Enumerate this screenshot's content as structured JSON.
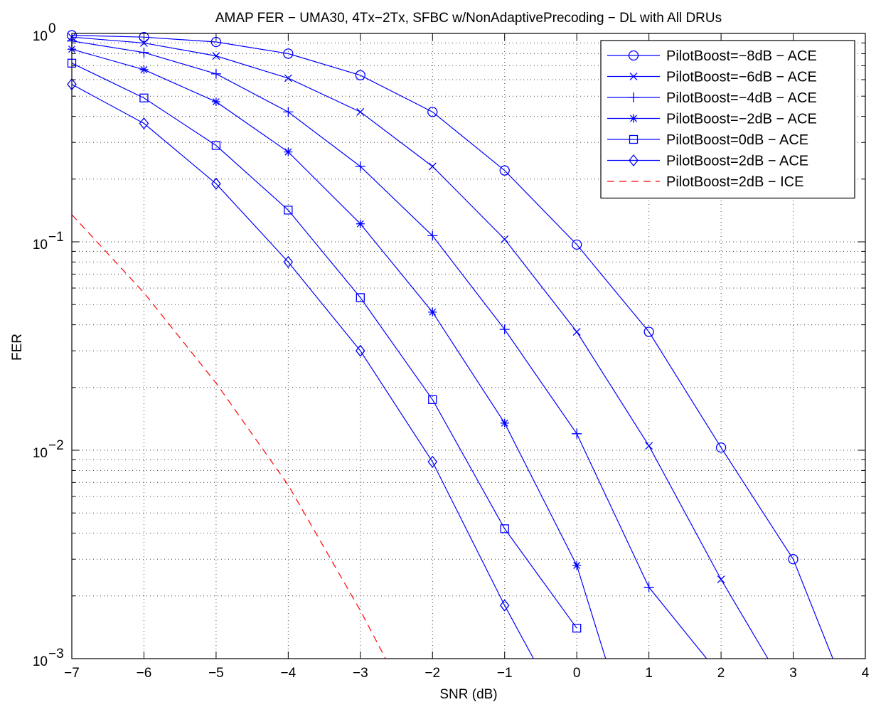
{
  "chart_data": {
    "type": "line",
    "title": "AMAP FER − UMA30, 4Tx−2Tx, SFBC w/NonAdaptivePrecoding − DL with All DRUs",
    "xlabel": "SNR (dB)",
    "ylabel": "FER",
    "xlim": [
      -7,
      4
    ],
    "ylim": [
      0.001,
      1
    ],
    "yscale": "log",
    "grid": true,
    "legend_position": "top-right",
    "x_ticks": [
      "−7",
      "−6",
      "−5",
      "−4",
      "−3",
      "−2",
      "−1",
      "0",
      "1",
      "2",
      "3",
      "4"
    ],
    "y_ticks": [
      {
        "base": "10",
        "exp": "0"
      },
      {
        "base": "10",
        "exp": "−1"
      },
      {
        "base": "10",
        "exp": "−2"
      },
      {
        "base": "10",
        "exp": "−3"
      }
    ],
    "series": [
      {
        "name": "PilotBoost=−8dB − ACE",
        "color": "#0000ff",
        "marker": "circle",
        "dash": "solid",
        "points": [
          [
            -7,
            0.98
          ],
          [
            -6,
            0.96
          ],
          [
            -5,
            0.91
          ],
          [
            -4,
            0.8
          ],
          [
            -3,
            0.63
          ],
          [
            -2,
            0.42
          ],
          [
            -1,
            0.22
          ],
          [
            0,
            0.097
          ],
          [
            1,
            0.037
          ],
          [
            2,
            0.0103
          ],
          [
            3,
            0.003
          ],
          [
            3.55,
            0.001
          ]
        ]
      },
      {
        "name": "PilotBoost=−6dB − ACE",
        "color": "#0000ff",
        "marker": "x",
        "dash": "solid",
        "points": [
          [
            -7,
            0.96
          ],
          [
            -6,
            0.9
          ],
          [
            -5,
            0.78
          ],
          [
            -4,
            0.61
          ],
          [
            -3,
            0.42
          ],
          [
            -2,
            0.23
          ],
          [
            -1,
            0.103
          ],
          [
            0,
            0.037
          ],
          [
            1,
            0.0105
          ],
          [
            2,
            0.0024
          ],
          [
            2.65,
            0.001
          ]
        ]
      },
      {
        "name": "PilotBoost=−4dB − ACE",
        "color": "#0000ff",
        "marker": "plus",
        "dash": "solid",
        "points": [
          [
            -7,
            0.92
          ],
          [
            -6,
            0.81
          ],
          [
            -5,
            0.64
          ],
          [
            -4,
            0.42
          ],
          [
            -3,
            0.23
          ],
          [
            -2,
            0.107
          ],
          [
            -1,
            0.038
          ],
          [
            0,
            0.012
          ],
          [
            1,
            0.0022
          ],
          [
            1.8,
            0.001
          ]
        ]
      },
      {
        "name": "PilotBoost=−2dB − ACE",
        "color": "#0000ff",
        "marker": "star",
        "dash": "solid",
        "points": [
          [
            -7,
            0.84
          ],
          [
            -6,
            0.67
          ],
          [
            -5,
            0.47
          ],
          [
            -4,
            0.27
          ],
          [
            -3,
            0.122
          ],
          [
            -2,
            0.046
          ],
          [
            -1,
            0.0135
          ],
          [
            0,
            0.0028
          ],
          [
            0.4,
            0.001
          ]
        ]
      },
      {
        "name": "PilotBoost=0dB − ACE",
        "color": "#0000ff",
        "marker": "square",
        "dash": "solid",
        "points": [
          [
            -7,
            0.72
          ],
          [
            -6,
            0.49
          ],
          [
            -5,
            0.29
          ],
          [
            -4,
            0.142
          ],
          [
            -3,
            0.054
          ],
          [
            -2,
            0.0175
          ],
          [
            -1,
            0.0042
          ],
          [
            0,
            0.0014
          ]
        ]
      },
      {
        "name": "PilotBoost=2dB − ACE",
        "color": "#0000ff",
        "marker": "diamond",
        "dash": "solid",
        "points": [
          [
            -7,
            0.57
          ],
          [
            -6,
            0.37
          ],
          [
            -5,
            0.19
          ],
          [
            -4,
            0.08
          ],
          [
            -3,
            0.03
          ],
          [
            -2,
            0.0088
          ],
          [
            -1,
            0.0018
          ],
          [
            -0.6,
            0.001
          ]
        ]
      },
      {
        "name": "PilotBoost=2dB − ICE",
        "color": "#ff0000",
        "marker": "none",
        "dash": "dashed",
        "points": [
          [
            -7,
            0.135
          ],
          [
            -6,
            0.057
          ],
          [
            -5,
            0.021
          ],
          [
            -4,
            0.0068
          ],
          [
            -3,
            0.0017
          ],
          [
            -2.65,
            0.001
          ]
        ]
      }
    ]
  }
}
